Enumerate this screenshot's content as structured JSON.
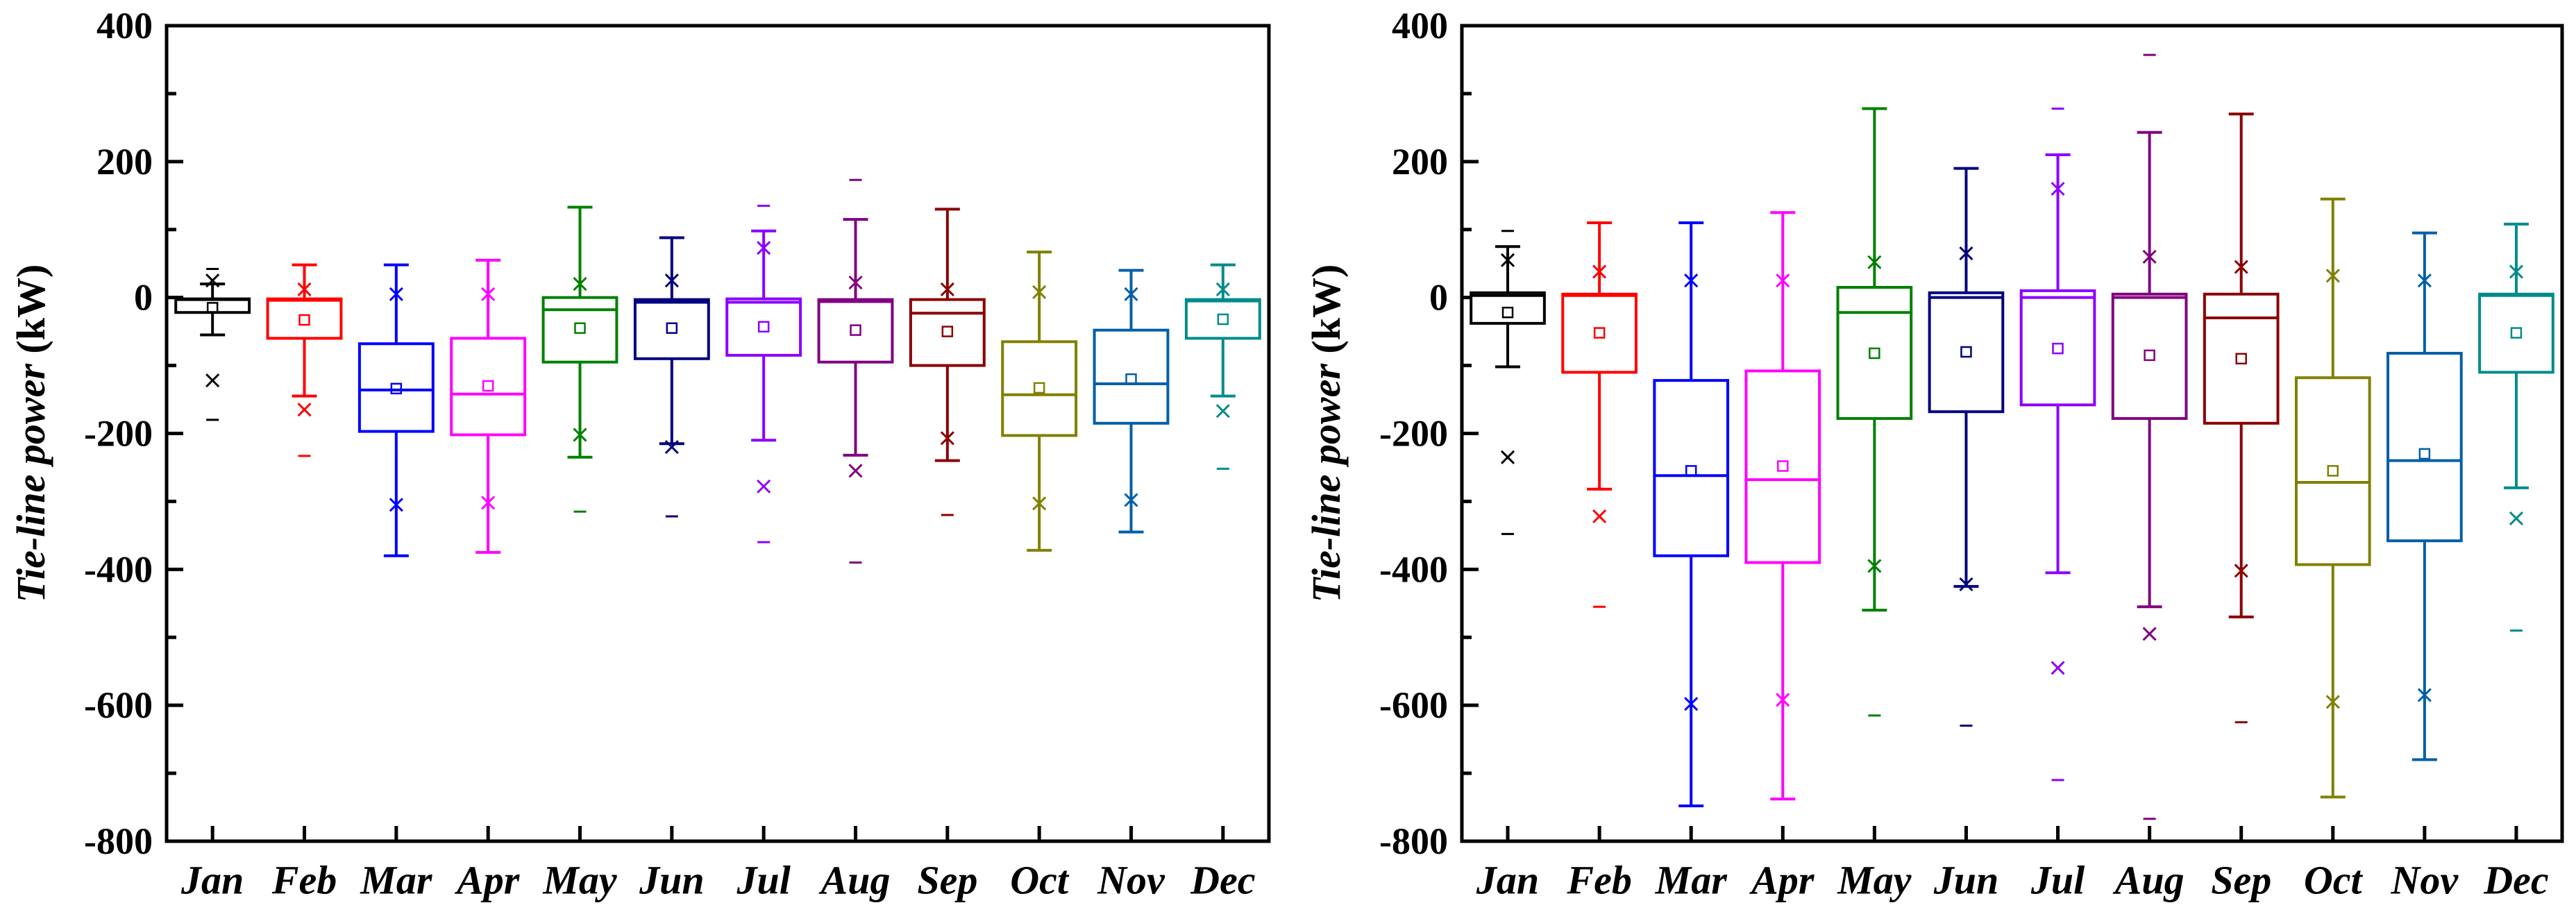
{
  "chart_data": [
    {
      "type": "box",
      "ylabel_italic": "Tie-line power",
      "ylabel_unit": " (kW)",
      "ylim": [
        -800,
        400
      ],
      "yticks": [
        400,
        200,
        0,
        -200,
        -400,
        -600,
        -800
      ],
      "categories": [
        "Jan",
        "Feb",
        "Mar",
        "Apr",
        "May",
        "Jun",
        "Jul",
        "Aug",
        "Sep",
        "Oct",
        "Nov",
        "Dec"
      ],
      "colors": [
        "#000000",
        "#ff0000",
        "#0000ff",
        "#ff00ff",
        "#008000",
        "#000080",
        "#8b00ff",
        "#800080",
        "#8b0000",
        "#808000",
        "#005fa8",
        "#008b8b"
      ],
      "boxes": [
        {
          "whisker_high": 20,
          "q3": -2,
          "median": -3,
          "q1": -22,
          "whisker_low": -55,
          "mean": -15,
          "x_high": 25,
          "x_low": -122,
          "dash_high": 42,
          "dash_low": -180
        },
        {
          "whisker_high": 48,
          "q3": -2,
          "median": -4,
          "q1": -60,
          "whisker_low": -145,
          "mean": -33,
          "x_high": 12,
          "x_low": -165,
          "dash_high": null,
          "dash_low": -233
        },
        {
          "whisker_high": 48,
          "q3": -68,
          "median": -136,
          "q1": -197,
          "whisker_low": -380,
          "mean": -134,
          "x_high": 5,
          "x_low": -305,
          "dash_high": null,
          "dash_low": null
        },
        {
          "whisker_high": 55,
          "q3": -60,
          "median": -142,
          "q1": -202,
          "whisker_low": -375,
          "mean": -130,
          "x_high": 5,
          "x_low": -302,
          "dash_high": null,
          "dash_low": null
        },
        {
          "whisker_high": 133,
          "q3": 0,
          "median": -18,
          "q1": -95,
          "whisker_low": -235,
          "mean": -45,
          "x_high": 20,
          "x_low": -202,
          "dash_high": null,
          "dash_low": -315
        },
        {
          "whisker_high": 88,
          "q3": -3,
          "median": -7,
          "q1": -90,
          "whisker_low": -215,
          "mean": -45,
          "x_high": 25,
          "x_low": -220,
          "dash_high": null,
          "dash_low": -322
        },
        {
          "whisker_high": 98,
          "q3": -2,
          "median": -7,
          "q1": -85,
          "whisker_low": -210,
          "mean": -43,
          "x_high": 73,
          "x_low": -278,
          "dash_high": 135,
          "dash_low": -360
        },
        {
          "whisker_high": 115,
          "q3": -3,
          "median": -6,
          "q1": -95,
          "whisker_low": -232,
          "mean": -48,
          "x_high": 22,
          "x_low": -255,
          "dash_high": 173,
          "dash_low": -390
        },
        {
          "whisker_high": 130,
          "q3": -3,
          "median": -23,
          "q1": -100,
          "whisker_low": -240,
          "mean": -50,
          "x_high": 12,
          "x_low": -207,
          "dash_high": null,
          "dash_low": -320
        },
        {
          "whisker_high": 67,
          "q3": -65,
          "median": -143,
          "q1": -203,
          "whisker_low": -372,
          "mean": -133,
          "x_high": 8,
          "x_low": -303,
          "dash_high": null,
          "dash_low": null
        },
        {
          "whisker_high": 40,
          "q3": -48,
          "median": -127,
          "q1": -185,
          "whisker_low": -345,
          "mean": -120,
          "x_high": 5,
          "x_low": -298,
          "dash_high": null,
          "dash_low": null
        },
        {
          "whisker_high": 48,
          "q3": -3,
          "median": -5,
          "q1": -60,
          "whisker_low": -145,
          "mean": -32,
          "x_high": 12,
          "x_low": -167,
          "dash_high": null,
          "dash_low": -252
        }
      ]
    },
    {
      "type": "box",
      "ylabel_italic": "Tie-line power",
      "ylabel_unit": " (kW)",
      "ylim": [
        -800,
        400
      ],
      "yticks": [
        400,
        200,
        0,
        -200,
        -400,
        -600,
        -800
      ],
      "categories": [
        "Jan",
        "Feb",
        "Mar",
        "Apr",
        "May",
        "Jun",
        "Jul",
        "Aug",
        "Sep",
        "Oct",
        "Nov",
        "Dec"
      ],
      "colors": [
        "#000000",
        "#ff0000",
        "#0000ff",
        "#ff00ff",
        "#008000",
        "#000080",
        "#8b00ff",
        "#800080",
        "#8b0000",
        "#808000",
        "#005fa8",
        "#008b8b"
      ],
      "boxes": [
        {
          "whisker_high": 75,
          "q3": 7,
          "median": 3,
          "q1": -38,
          "whisker_low": -102,
          "mean": -22,
          "x_high": 55,
          "x_low": -235,
          "dash_high": 98,
          "dash_low": -348
        },
        {
          "whisker_high": 110,
          "q3": 5,
          "median": 3,
          "q1": -110,
          "whisker_low": -282,
          "mean": -52,
          "x_high": 38,
          "x_low": -322,
          "dash_high": null,
          "dash_low": -455
        },
        {
          "whisker_high": 110,
          "q3": -122,
          "median": -262,
          "q1": -380,
          "whisker_low": -748,
          "mean": -255,
          "x_high": 25,
          "x_low": -598,
          "dash_high": null,
          "dash_low": null
        },
        {
          "whisker_high": 125,
          "q3": -108,
          "median": -268,
          "q1": -390,
          "whisker_low": -738,
          "mean": -248,
          "x_high": 25,
          "x_low": -592,
          "dash_high": null,
          "dash_low": null
        },
        {
          "whisker_high": 278,
          "q3": 15,
          "median": -22,
          "q1": -178,
          "whisker_low": -460,
          "mean": -82,
          "x_high": 52,
          "x_low": -395,
          "dash_high": null,
          "dash_low": -615
        },
        {
          "whisker_high": 190,
          "q3": 7,
          "median": 0,
          "q1": -168,
          "whisker_low": -425,
          "mean": -80,
          "x_high": 65,
          "x_low": -422,
          "dash_high": null,
          "dash_low": -630
        },
        {
          "whisker_high": 210,
          "q3": 10,
          "median": 0,
          "q1": -158,
          "whisker_low": -405,
          "mean": -75,
          "x_high": 160,
          "x_low": -545,
          "dash_high": 278,
          "dash_low": -710
        },
        {
          "whisker_high": 243,
          "q3": 5,
          "median": 0,
          "q1": -178,
          "whisker_low": -455,
          "mean": -85,
          "x_high": 60,
          "x_low": -495,
          "dash_high": 357,
          "dash_low": -767
        },
        {
          "whisker_high": 270,
          "q3": 5,
          "median": -30,
          "q1": -185,
          "whisker_low": -470,
          "mean": -90,
          "x_high": 45,
          "x_low": -402,
          "dash_high": null,
          "dash_low": -625
        },
        {
          "whisker_high": 145,
          "q3": -118,
          "median": -272,
          "q1": -393,
          "whisker_low": -735,
          "mean": -255,
          "x_high": 32,
          "x_low": -595,
          "dash_high": null,
          "dash_low": null
        },
        {
          "whisker_high": 95,
          "q3": -82,
          "median": -240,
          "q1": -358,
          "whisker_low": -680,
          "mean": -230,
          "x_high": 25,
          "x_low": -585,
          "dash_high": null,
          "dash_low": null
        },
        {
          "whisker_high": 108,
          "q3": 5,
          "median": 3,
          "q1": -110,
          "whisker_low": -280,
          "mean": -52,
          "x_high": 38,
          "x_low": -325,
          "dash_high": null,
          "dash_low": -490
        }
      ]
    }
  ]
}
